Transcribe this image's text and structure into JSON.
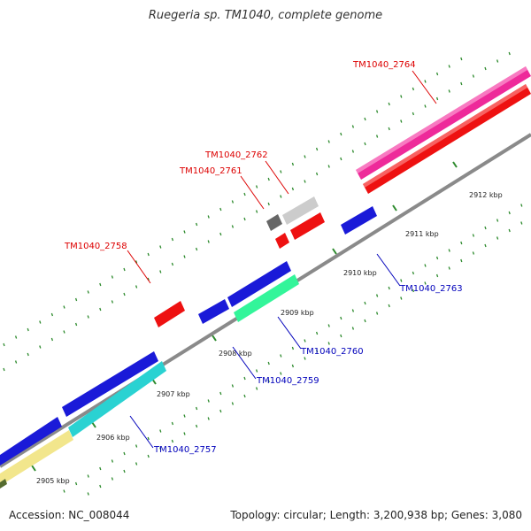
{
  "title": "Ruegeria sp. TM1040, complete genome",
  "footer": {
    "accession": "Accession: NC_008044",
    "topology": "Topology: circular; Length: 3,200,938 bp; Genes: 3,080"
  },
  "colors": {
    "red": "#ee1111",
    "blue": "#1a1ad8",
    "pink": "#ee2a9a",
    "grey": "#777777",
    "lightgrey": "#cccccc",
    "green": "#33f59a",
    "cyan": "#2ad2d2",
    "yellow": "#f2e68c",
    "backbone": "#8a8a8a",
    "tick": "#2e8b2e",
    "label_red": "#dd0000",
    "label_blue": "#0000bb"
  },
  "ticks": [
    "2905 kbp",
    "2906 kbp",
    "2907 kbp",
    "2908 kbp",
    "2909 kbp",
    "2910 kbp",
    "2911 kbp",
    "2912 kbp"
  ],
  "gene_labels": [
    "TM1040_2764",
    "TM1040_2762",
    "TM1040_2761",
    "TM1040_2758",
    "TM1040_2763",
    "TM1040_2760",
    "TM1040_2759",
    "TM1040_2757"
  ]
}
